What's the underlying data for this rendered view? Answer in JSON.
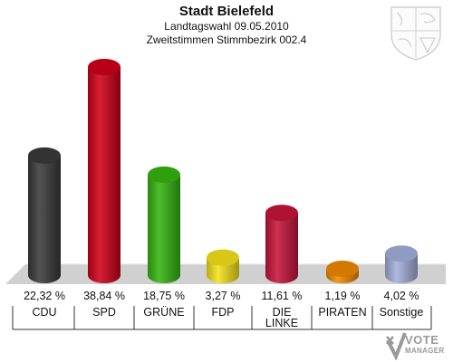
{
  "header": {
    "title": "Stadt Bielefeld",
    "subtitle1": "Landtagswahl 09.05.2010",
    "subtitle2": "Zweitstimmen Stimmbezirk 002.4"
  },
  "logo": {
    "line1": "VOTE",
    "line2": "MANAGER"
  },
  "chart_data": {
    "type": "bar",
    "title": "Stadt Bielefeld",
    "categories": [
      "CDU",
      "SPD",
      "GRÜNE",
      "FDP",
      "DIE LINKE",
      "PIRATEN",
      "Sonstige"
    ],
    "category_lines": [
      [
        "CDU"
      ],
      [
        "SPD"
      ],
      [
        "GRÜNE"
      ],
      [
        "FDP"
      ],
      [
        "DIE",
        "LINKE"
      ],
      [
        "PIRATEN"
      ],
      [
        "Sonstige"
      ]
    ],
    "values": [
      22.32,
      38.84,
      18.75,
      3.27,
      11.61,
      1.19,
      4.02
    ],
    "value_labels": [
      "22,32 %",
      "38,84 %",
      "18,75 %",
      "3,27 %",
      "11,61 %",
      "1,19 %",
      "4,02 %"
    ],
    "colors": [
      "#3a3a3a",
      "#d0001a",
      "#35b512",
      "#f5e21a",
      "#c8143c",
      "#f08a00",
      "#a4b0dc"
    ],
    "ylim": [
      0,
      38.84
    ],
    "grid": false,
    "legend": "none"
  }
}
